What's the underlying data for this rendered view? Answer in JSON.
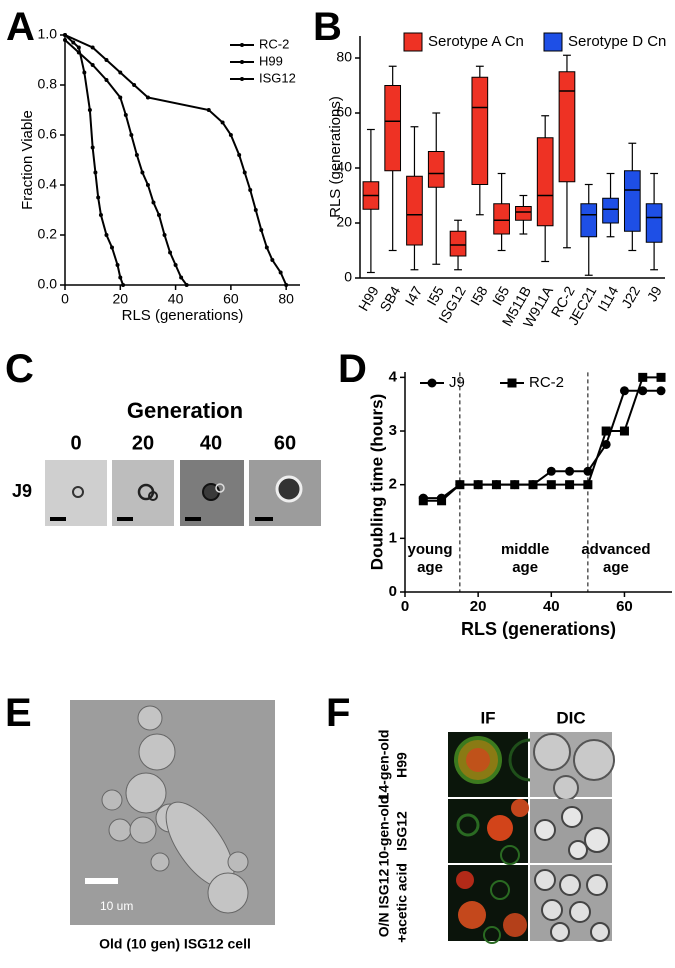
{
  "chart_data": [
    {
      "type": "line",
      "x_label": "RLS (generations)",
      "y_label": "Fraction Viable",
      "xlim": [
        0,
        85
      ],
      "xticks": [
        0,
        20,
        40,
        60,
        80
      ],
      "ylim": [
        0,
        1
      ],
      "yticks": [
        {
          "value": 0,
          "label": "0.0"
        },
        0.2,
        0.4,
        0.6,
        0.8,
        {
          "value": 1,
          "label": "1.0"
        }
      ],
      "legend": "upper right",
      "series": [
        {
          "name": "RC-2",
          "color": "#000000",
          "marker": "dot",
          "x": [
            0,
            10,
            15,
            20,
            25,
            30,
            52,
            57,
            60,
            63,
            65,
            67,
            69,
            71,
            73,
            75,
            78,
            80
          ],
          "values": [
            1,
            0.95,
            0.9,
            0.85,
            0.8,
            0.75,
            0.7,
            0.65,
            0.6,
            0.52,
            0.45,
            0.38,
            0.3,
            0.22,
            0.15,
            0.1,
            0.05,
            0
          ]
        },
        {
          "name": "H99",
          "color": "#000000",
          "marker": "dot",
          "x": [
            0,
            5,
            10,
            15,
            20,
            22,
            24,
            26,
            28,
            30,
            32,
            34,
            36,
            38,
            40,
            42,
            44
          ],
          "values": [
            0.98,
            0.93,
            0.88,
            0.82,
            0.75,
            0.68,
            0.6,
            0.52,
            0.45,
            0.4,
            0.33,
            0.28,
            0.2,
            0.13,
            0.08,
            0.03,
            0
          ]
        },
        {
          "name": "ISG12",
          "color": "#000000",
          "marker": "dot",
          "x": [
            0,
            3,
            5,
            7,
            9,
            10,
            11,
            12,
            13,
            15,
            17,
            19,
            20,
            21
          ],
          "values": [
            1,
            0.97,
            0.95,
            0.85,
            0.7,
            0.55,
            0.45,
            0.35,
            0.28,
            0.2,
            0.15,
            0.08,
            0.03,
            0
          ]
        }
      ]
    },
    {
      "type": "box",
      "y_label": "RLS (generations)",
      "ylim": [
        0,
        88
      ],
      "yticks": [
        0,
        20,
        40,
        60,
        80
      ],
      "legend": "top",
      "series": [
        {
          "name": "Serotype A Cn",
          "color": "#ee3224",
          "categories": [
            "H99",
            "SB4",
            "I47",
            "I55",
            "ISG12",
            "I58",
            "I65",
            "M511B",
            "W911A",
            "RC-2"
          ],
          "min": [
            2,
            10,
            3,
            5,
            3,
            23,
            10,
            16,
            6,
            11
          ],
          "q1": [
            25,
            39,
            12,
            33,
            8,
            34,
            16,
            21,
            19,
            35
          ],
          "median": [
            30,
            57,
            23,
            38,
            12,
            62,
            21,
            24,
            30,
            68
          ],
          "q3": [
            35,
            70,
            37,
            46,
            17,
            73,
            27,
            26,
            51,
            75
          ],
          "max": [
            54,
            77,
            55,
            60,
            21,
            77,
            38,
            30,
            59,
            81
          ]
        },
        {
          "name": "Serotype D Cn",
          "color": "#1e4fe6",
          "categories": [
            "JEC21",
            "I114",
            "J22",
            "J9"
          ],
          "min": [
            1,
            15,
            10,
            3
          ],
          "q1": [
            15,
            20,
            17,
            13
          ],
          "median": [
            23,
            25,
            32,
            22
          ],
          "q3": [
            27,
            29,
            39,
            27
          ],
          "max": [
            34,
            38,
            49,
            38
          ]
        }
      ]
    },
    {
      "type": "line",
      "x_label": "RLS (generations)",
      "y_label": "Doubling time (hours)",
      "xlim": [
        0,
        73
      ],
      "xticks": [
        0,
        20,
        40,
        60
      ],
      "ylim": [
        0,
        4.1
      ],
      "yticks": [
        0,
        1,
        2,
        3,
        4
      ],
      "legend": "top",
      "vlines": [
        15,
        50
      ],
      "annotations": [
        [
          "young",
          "age"
        ],
        [
          "middle",
          "age"
        ],
        [
          "advanced",
          "age"
        ]
      ],
      "series": [
        {
          "name": "J9",
          "color": "#000000",
          "marker": "circle",
          "x": [
            5,
            10,
            15,
            20,
            25,
            30,
            35,
            40,
            45,
            50,
            55,
            60,
            65,
            70
          ],
          "values": [
            1.75,
            1.75,
            2,
            2,
            2,
            2,
            2,
            2.25,
            2.25,
            2.25,
            2.75,
            3.75,
            3.75,
            3.75
          ]
        },
        {
          "name": "RC-2",
          "color": "#000000",
          "marker": "square",
          "x": [
            5,
            10,
            15,
            20,
            25,
            30,
            35,
            40,
            45,
            50,
            55,
            60,
            65,
            70
          ],
          "values": [
            1.7,
            1.7,
            2,
            2,
            2,
            2,
            2,
            2,
            2,
            2,
            3,
            3,
            4,
            4
          ]
        }
      ]
    }
  ],
  "figure": {
    "panel_labels": [
      "A",
      "B",
      "C",
      "D",
      "E",
      "F"
    ],
    "panel_c": {
      "title": "Generation",
      "generations": [
        "0",
        "20",
        "40",
        "60"
      ],
      "strain": "J9"
    },
    "panel_e": {
      "scale": "10 um",
      "caption": "Old (10 gen) ISG12 cell"
    },
    "panel_f": {
      "columns": [
        "IF",
        "DIC"
      ],
      "rows": [
        [
          "14-gen-old",
          "H99"
        ],
        [
          "10-gen-old",
          "ISG12"
        ],
        [
          "O/N ISG12",
          "+acetic acid"
        ]
      ]
    }
  }
}
